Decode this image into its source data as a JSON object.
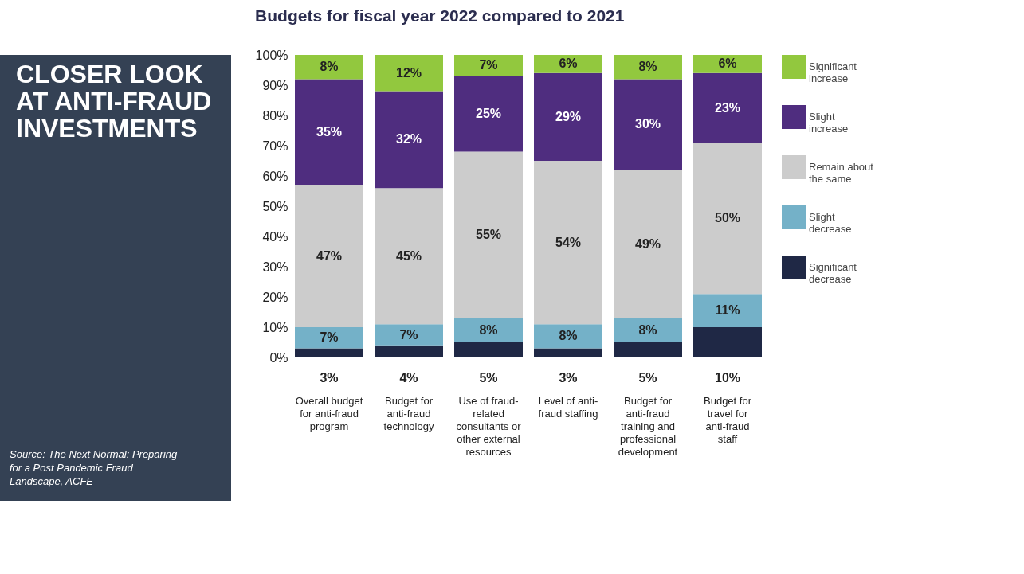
{
  "chart_data": {
    "type": "bar",
    "stacked": true,
    "title": "CLOSER LOOK AT ANTI-FRAUD INVESTMENTS",
    "subtitle": "Budgets for fiscal year 2022 compared to 2021",
    "categories": [
      "Overall budget for anti-fraud program",
      "Budget for anti-fraud technology",
      "Use of fraud-related consultants or other external resources",
      "Level of anti-fraud staffing",
      "Budget for anti-fraud training and professional development",
      "Budget for travel for anti-fraud staff"
    ],
    "series": [
      {
        "name": "Significant decrease",
        "color": "#1f2845",
        "values": [
          3,
          4,
          5,
          3,
          5,
          10
        ],
        "value_labels": [
          "3%",
          "4%",
          "5%",
          "3%",
          "5%",
          "10%"
        ]
      },
      {
        "name": "Slight decrease",
        "color": "#74b1c8",
        "values": [
          7,
          7,
          8,
          8,
          8,
          11
        ],
        "value_labels": [
          "7%",
          "7%",
          "8%",
          "8%",
          "8%",
          "11%"
        ]
      },
      {
        "name": "Remain about the same",
        "color": "#cccccc",
        "values": [
          47,
          45,
          55,
          54,
          49,
          50
        ],
        "value_labels": [
          "47%",
          "45%",
          "55%",
          "54%",
          "49%",
          "50%"
        ]
      },
      {
        "name": "Slight increase",
        "color": "#4f2d7f",
        "values": [
          35,
          32,
          25,
          29,
          30,
          23
        ],
        "value_labels": [
          "35%",
          "32%",
          "25%",
          "29%",
          "30%",
          "23%"
        ]
      },
      {
        "name": "Significant increase",
        "color": "#92c83e",
        "values": [
          8,
          12,
          7,
          6,
          8,
          6
        ],
        "value_labels": [
          "8%",
          "12%",
          "7%",
          "6%",
          "8%",
          "6%"
        ]
      }
    ],
    "ylim": [
      0,
      100
    ],
    "yticks": [
      {
        "value": 0,
        "label": "0%"
      },
      {
        "value": 10,
        "label": "10%"
      },
      {
        "value": 20,
        "label": "20%"
      },
      {
        "value": 30,
        "label": "30%"
      },
      {
        "value": 40,
        "label": "40%"
      },
      {
        "value": 50,
        "label": "50%"
      },
      {
        "value": 60,
        "label": "60%"
      },
      {
        "value": 70,
        "label": "70%"
      },
      {
        "value": 80,
        "label": "80%"
      },
      {
        "value": 90,
        "label": "90%"
      },
      {
        "value": 100,
        "label": "100%"
      }
    ],
    "grid": false,
    "legend": "right",
    "annotations": [
      "Source: The Next Normal: Preparing for a Post Pandemic Fraud Landscape, ACFE"
    ]
  }
}
